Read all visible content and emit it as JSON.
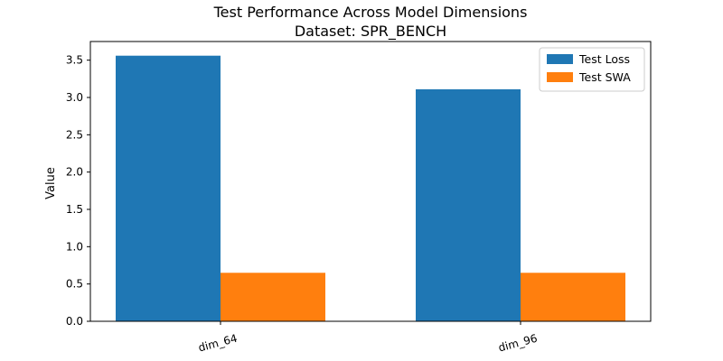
{
  "chart_data": {
    "type": "bar",
    "title": "Test Performance Across Model Dimensions",
    "subtitle": "Dataset: SPR_BENCH",
    "xlabel": "",
    "ylabel": "Value",
    "categories": [
      "dim_64",
      "dim_96"
    ],
    "series": [
      {
        "name": "Test Loss",
        "values": [
          3.56,
          3.11
        ],
        "color": "#1f77b4"
      },
      {
        "name": "Test SWA",
        "values": [
          0.65,
          0.65
        ],
        "color": "#ff7f0e"
      }
    ],
    "ylim": [
      0,
      3.75
    ],
    "yticks": [
      "0.0",
      "0.5",
      "1.0",
      "1.5",
      "2.0",
      "2.5",
      "3.0",
      "3.5"
    ],
    "grid": false,
    "legend_position": "top-right",
    "xtick_rotation_deg": -15
  }
}
